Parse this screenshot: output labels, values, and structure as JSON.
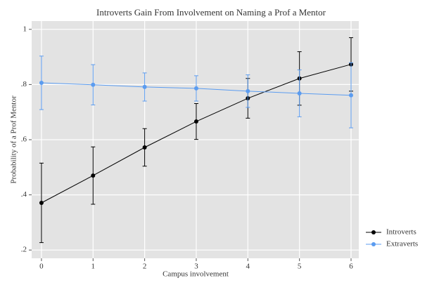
{
  "chart_data": {
    "type": "line",
    "title": "Introverts Gain From Involvement on Naming a Prof a Mentor",
    "x_label": "Campus involvement",
    "y_label": "Probability of a Prof Mentor",
    "x": [
      0,
      1,
      2,
      3,
      4,
      5,
      6
    ],
    "series": [
      {
        "name": "Introverts",
        "color": "#000000",
        "values": [
          0.371,
          0.47,
          0.572,
          0.666,
          0.75,
          0.822,
          0.873
        ],
        "errors": [
          0.144,
          0.104,
          0.068,
          0.065,
          0.072,
          0.097,
          0.097
        ]
      },
      {
        "name": "Extraverts",
        "color": "#5b9cf0",
        "values": [
          0.806,
          0.799,
          0.791,
          0.786,
          0.776,
          0.768,
          0.761
        ],
        "errors": [
          0.097,
          0.073,
          0.051,
          0.046,
          0.059,
          0.085,
          0.118
        ]
      }
    ],
    "xlim": [
      -0.19,
      6.15
    ],
    "xticks": [
      0,
      1,
      2,
      3,
      4,
      5,
      6
    ],
    "ylim": [
      0.17,
      1.03
    ],
    "yticks": [
      {
        "value": 0.2,
        "label": ".2"
      },
      {
        "value": 0.4,
        "label": ".4"
      },
      {
        "value": 0.6,
        "label": ".6"
      },
      {
        "value": 0.8,
        "label": ".8"
      },
      1
    ],
    "grid": true,
    "legend": "right"
  }
}
